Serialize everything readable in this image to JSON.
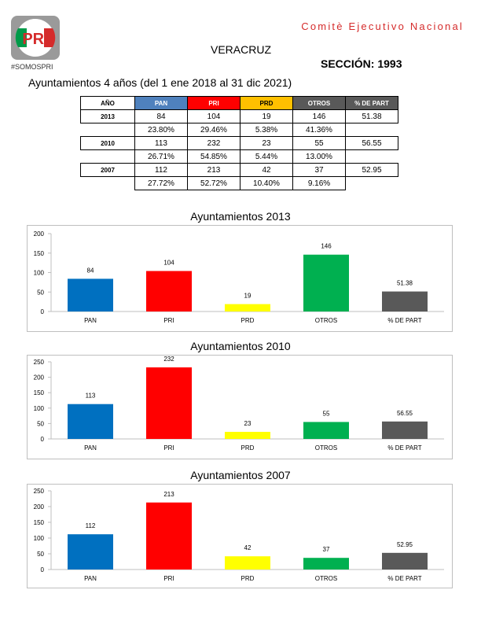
{
  "header": {
    "logo_text": "PRI",
    "logo_tag": "#SOMOSPRI",
    "committee": "Comitè Ejecutivo Nacional",
    "state": "VERACRUZ",
    "section": "SECCIÓN: 1993",
    "subtitle": "Ayuntamientos 4 años (del 1 ene 2018 al 31 dic 2021)"
  },
  "colors": {
    "PAN": "#0070c0",
    "PRI": "#ff0000",
    "PRD": "#ffff00",
    "OTROS": "#00b050",
    "PART": "#595959",
    "hdr_pan": "#4f81bd",
    "hdr_pri": "#ff0000",
    "hdr_prd": "#ffc000",
    "hdr_otros": "#595959",
    "hdr_part": "#595959"
  },
  "table": {
    "headers": [
      "AÑO",
      "PAN",
      "PRI",
      "PRD",
      "OTROS",
      "% DE PART"
    ],
    "rows": [
      {
        "year": "2013",
        "values": [
          "84",
          "104",
          "19",
          "146"
        ],
        "part": "51.38",
        "pcts": [
          "23.80%",
          "29.46%",
          "5.38%",
          "41.36%"
        ]
      },
      {
        "year": "2010",
        "values": [
          "113",
          "232",
          "23",
          "55"
        ],
        "part": "56.55",
        "pcts": [
          "26.71%",
          "54.85%",
          "5.44%",
          "13.00%"
        ]
      },
      {
        "year": "2007",
        "values": [
          "112",
          "213",
          "42",
          "37"
        ],
        "part": "52.95",
        "pcts": [
          "27.72%",
          "52.72%",
          "10.40%",
          "9.16%"
        ]
      }
    ]
  },
  "chart_data": [
    {
      "type": "bar",
      "title": "Ayuntamientos  2013",
      "categories": [
        "PAN",
        "PRI",
        "PRD",
        "OTROS",
        "% DE PART"
      ],
      "values": [
        84,
        104,
        19,
        146,
        51.38
      ],
      "value_labels": [
        "84",
        "104",
        "19",
        "146",
        "51.38"
      ],
      "ylim": [
        0,
        200
      ],
      "yticks": [
        "0",
        "50",
        "100",
        "150",
        "200"
      ],
      "grid": false
    },
    {
      "type": "bar",
      "title": "Ayuntamientos 2010",
      "categories": [
        "PAN",
        "PRI",
        "PRD",
        "OTROS",
        "% DE PART"
      ],
      "values": [
        113,
        232,
        23,
        55,
        56.55
      ],
      "value_labels": [
        "113",
        "232",
        "23",
        "55",
        "56.55"
      ],
      "ylim": [
        0,
        250
      ],
      "yticks": [
        "0",
        "50",
        "100",
        "150",
        "200",
        "250"
      ],
      "grid": false
    },
    {
      "type": "bar",
      "title": "Ayuntamientos 2007",
      "categories": [
        "PAN",
        "PRI",
        "PRD",
        "OTROS",
        "% DE PART"
      ],
      "values": [
        112,
        213,
        42,
        37,
        52.95
      ],
      "value_labels": [
        "112",
        "213",
        "42",
        "37",
        "52.95"
      ],
      "ylim": [
        0,
        250
      ],
      "yticks": [
        "0",
        "50",
        "100",
        "150",
        "200",
        "250"
      ],
      "grid": false
    }
  ]
}
